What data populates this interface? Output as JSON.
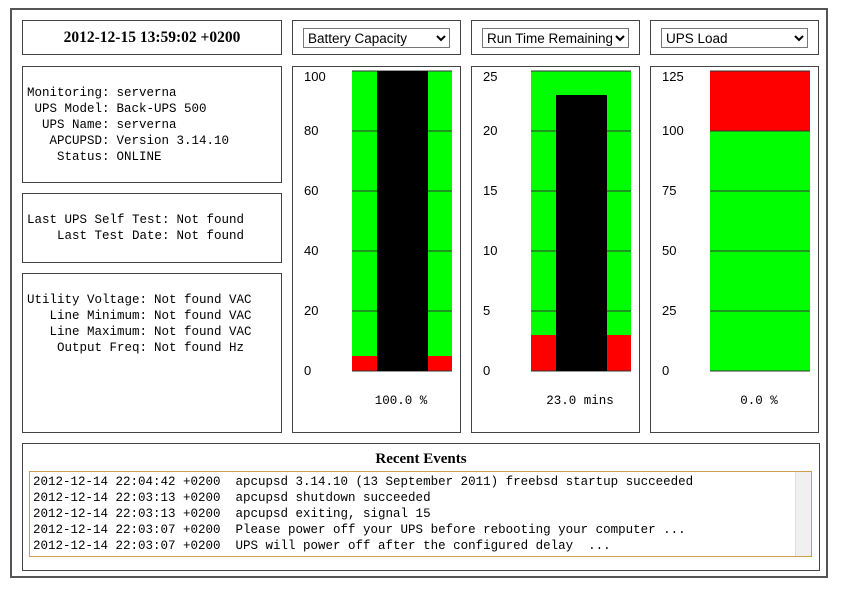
{
  "timestamp": "2012-12-15 13:59:02 +0200",
  "status": [
    {
      "label": "Monitoring:",
      "value": "serverna"
    },
    {
      "label": "UPS Model:",
      "value": "Back-UPS 500"
    },
    {
      "label": "UPS Name:",
      "value": "serverna"
    },
    {
      "label": "APCUPSD:",
      "value": "Version 3.14.10"
    },
    {
      "label": "Status:",
      "value": "ONLINE"
    }
  ],
  "self_test": [
    {
      "label": "Last UPS Self Test:",
      "value": "Not found"
    },
    {
      "label": "Last Test Date:",
      "value": "Not found"
    }
  ],
  "voltage": [
    {
      "label": "Utility Voltage:",
      "value": "Not found VAC"
    },
    {
      "label": "Line Minimum:",
      "value": "Not found VAC"
    },
    {
      "label": "Line Maximum:",
      "value": "Not found VAC"
    },
    {
      "label": "Output Freq:",
      "value": "Not found Hz"
    }
  ],
  "gauges": [
    {
      "type": "bar",
      "selector": "Battery Capacity",
      "ylim": [
        0,
        100
      ],
      "yticks": [
        0,
        20,
        40,
        60,
        80,
        100
      ],
      "value": 100,
      "value_label": "100.0 %",
      "zones": [
        {
          "from": 0,
          "to": 5,
          "color": "#ff0000"
        },
        {
          "from": 5,
          "to": 100,
          "color": "#00ff00"
        }
      ],
      "color": "#000000"
    },
    {
      "type": "bar",
      "selector": "Run Time Remaining",
      "ylim": [
        0,
        25
      ],
      "yticks": [
        0,
        5,
        10,
        15,
        20,
        25
      ],
      "value": 23,
      "value_label": "23.0 mins",
      "zones": [
        {
          "from": 0,
          "to": 3,
          "color": "#ff0000"
        },
        {
          "from": 3,
          "to": 25,
          "color": "#00ff00"
        }
      ],
      "color": "#000000"
    },
    {
      "type": "bar",
      "selector": "UPS Load",
      "ylim": [
        0,
        125
      ],
      "yticks": [
        0,
        25,
        50,
        75,
        100,
        125
      ],
      "value": 0,
      "value_label": "0.0 %",
      "zones": [
        {
          "from": 0,
          "to": 100,
          "color": "#00ff00"
        },
        {
          "from": 100,
          "to": 125,
          "color": "#ff0000"
        }
      ],
      "color": "#000000"
    }
  ],
  "events": {
    "title": "Recent Events",
    "lines": [
      "2012-12-14 22:04:42 +0200  apcupsd 3.14.10 (13 September 2011) freebsd startup succeeded",
      "2012-12-14 22:03:13 +0200  apcupsd shutdown succeeded",
      "2012-12-14 22:03:13 +0200  apcupsd exiting, signal 15",
      "2012-12-14 22:03:07 +0200  Please power off your UPS before rebooting your computer ...",
      "2012-12-14 22:03:07 +0200  UPS will power off after the configured delay  ..."
    ]
  }
}
